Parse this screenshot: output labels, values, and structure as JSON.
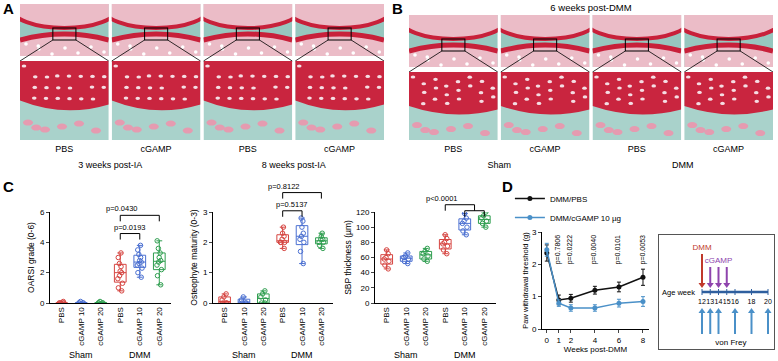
{
  "panel_A": {
    "letter": "A",
    "labels": [
      "PBS",
      "cGAMP",
      "PBS",
      "cGAMP"
    ],
    "groups": [
      "3 weeks post-IA",
      "3 weeks post-IA",
      "8 weeks post-IA",
      "8 weeks post-IA"
    ]
  },
  "panel_B": {
    "letter": "B",
    "title": "6 weeks post-DMM",
    "labels": [
      "PBS",
      "cGAMP",
      "PBS",
      "cGAMP"
    ],
    "groups": [
      "Sham",
      "Sham",
      "DMM",
      "DMM"
    ]
  },
  "panel_C": {
    "letter": "C"
  },
  "panel_D": {
    "letter": "D"
  },
  "chart_data": [
    {
      "type": "box",
      "y_label": "OARSI grade (0-6)",
      "categories": [
        "PBS",
        "cGAMP 10",
        "cGAMP 20",
        "PBS",
        "cGAMP 10",
        "cGAMP 20"
      ],
      "group": [
        "Sham",
        "Sham",
        "Sham",
        "DMM",
        "DMM",
        "DMM"
      ],
      "colors": [
        "#d64541",
        "#4a6fd1",
        "#2e9e4f",
        "#d64541",
        "#4a6fd1",
        "#2e9e4f"
      ],
      "points": [
        [
          0,
          0,
          0,
          0,
          0.1,
          0
        ],
        [
          0,
          0,
          0,
          0.1,
          0
        ],
        [
          0,
          0,
          0.1,
          0,
          0
        ],
        [
          0.8,
          1.0,
          1.3,
          1.6,
          1.8,
          2.0,
          2.1,
          2.4,
          2.6,
          3.0,
          3.3
        ],
        [
          1.7,
          2.0,
          2.3,
          2.5,
          2.6,
          2.7,
          2.8,
          3.0,
          3.2,
          3.5,
          3.8
        ],
        [
          1.2,
          1.8,
          2.2,
          2.5,
          2.7,
          2.8,
          3.0,
          3.3,
          3.6,
          4.1
        ]
      ],
      "ylim": [
        0,
        6
      ],
      "yticks": [
        0,
        2,
        4,
        6
      ],
      "comparisons": [
        {
          "a": 3,
          "b": [
            4
          ],
          "label": "p=0.0193"
        },
        {
          "a": 3,
          "b": [
            5
          ],
          "label": "p=0.0430"
        }
      ]
    },
    {
      "type": "box",
      "y_label": "Osteophyte maturity (0-3)",
      "categories": [
        "PBS",
        "cGAMP 10",
        "cGAMP 20",
        "PBS",
        "cGAMP 10",
        "cGAMP 20"
      ],
      "group": [
        "Sham",
        "Sham",
        "Sham",
        "DMM",
        "DMM",
        "DMM"
      ],
      "colors": [
        "#d64541",
        "#4a6fd1",
        "#2e9e4f",
        "#d64541",
        "#4a6fd1",
        "#2e9e4f"
      ],
      "points": [
        [
          0,
          0,
          0.1,
          0.2,
          0.3,
          0
        ],
        [
          0,
          0,
          0.1,
          0.2,
          0
        ],
        [
          0,
          0.1,
          0.2,
          0.3,
          0.4,
          0
        ],
        [
          1.8,
          2.0,
          2.0,
          2.1,
          2.2,
          2.3,
          2.0,
          2.5
        ],
        [
          1.3,
          1.7,
          2.0,
          2.1,
          2.2,
          2.3,
          2.5,
          2.7,
          2.8
        ],
        [
          1.8,
          1.9,
          2.0,
          2.0,
          2.1,
          2.1,
          2.2,
          2.3
        ]
      ],
      "ylim": [
        0,
        3
      ],
      "yticks": [
        0,
        1,
        2,
        3
      ],
      "comparisons": [
        {
          "a": 3,
          "b": [
            4
          ],
          "label": "p=0.5137"
        },
        {
          "a": 3,
          "b": [
            5
          ],
          "label": "p=0.8122"
        }
      ]
    },
    {
      "type": "box",
      "y_label": "SBP thickness (µm)",
      "categories": [
        "PBS",
        "cGAMP 10",
        "cGAMP 20",
        "PBS",
        "cGAMP 10",
        "cGAMP 20"
      ],
      "group": [
        "Sham",
        "Sham",
        "Sham",
        "DMM",
        "DMM",
        "DMM"
      ],
      "colors": [
        "#d64541",
        "#4a6fd1",
        "#2e9e4f",
        "#d64541",
        "#4a6fd1",
        "#2e9e4f"
      ],
      "points": [
        [
          45,
          50,
          55,
          58,
          60,
          65,
          70
        ],
        [
          52,
          55,
          58,
          60,
          62,
          66
        ],
        [
          55,
          58,
          62,
          65,
          68,
          72
        ],
        [
          65,
          70,
          75,
          78,
          80,
          85,
          90
        ],
        [
          90,
          95,
          100,
          105,
          108,
          112,
          118
        ],
        [
          100,
          105,
          108,
          112,
          115,
          120
        ]
      ],
      "ylim": [
        0,
        120
      ],
      "yticks": [
        0,
        20,
        40,
        60,
        80,
        100,
        120
      ],
      "comparisons": [
        {
          "a": 3,
          "b": [
            4,
            5
          ],
          "label": "p<0.0001"
        }
      ]
    },
    {
      "type": "line",
      "x_label": "Weeks post-DMM",
      "y_label": "Paw withdrawal threshold (g)",
      "x": [
        0,
        1,
        2,
        4,
        6,
        8
      ],
      "xlim": [
        -0.4,
        8.5
      ],
      "xticks": [
        0,
        1,
        2,
        4,
        6,
        8
      ],
      "ylim": [
        0,
        3
      ],
      "yticks": [
        0,
        1,
        2,
        3
      ],
      "legend": "top",
      "series": [
        {
          "name": "DMM/PBS",
          "color": "#111111",
          "marker": "circle",
          "values": [
            2.35,
            0.9,
            0.95,
            1.2,
            1.3,
            1.6
          ],
          "errors": [
            0.25,
            0.15,
            0.12,
            0.12,
            0.15,
            0.25
          ]
        },
        {
          "name": "DMM/cGAMP 10 µg",
          "color": "#4a90c8",
          "marker": "circle",
          "values": [
            2.45,
            0.8,
            0.65,
            0.65,
            0.8,
            0.85
          ],
          "errors": [
            0.2,
            0.1,
            0.1,
            0.1,
            0.12,
            0.15
          ]
        }
      ],
      "annotations": [
        {
          "x": 1,
          "text": "p=0.7806"
        },
        {
          "x": 2,
          "text": "p=0.0222"
        },
        {
          "x": 4,
          "text": "p=0.0040"
        },
        {
          "x": 6,
          "text": "p=0.0101"
        },
        {
          "x": 8,
          "text": "p=0.0053"
        }
      ]
    }
  ],
  "timeline": {
    "axis_label": "Age week",
    "range": [
      12,
      20
    ],
    "ticks": [
      12,
      13,
      14,
      15,
      16,
      18,
      20
    ],
    "events": [
      {
        "label": "DMM",
        "weeks": [
          12
        ],
        "color": "#c0392b"
      },
      {
        "label": "cGAMP",
        "weeks": [
          13,
          14,
          15
        ],
        "color": "#8e44ad"
      },
      {
        "label": "von Frey",
        "weeks": [
          12,
          13,
          14,
          16,
          18,
          20
        ],
        "color": "#4a90c8"
      }
    ]
  }
}
